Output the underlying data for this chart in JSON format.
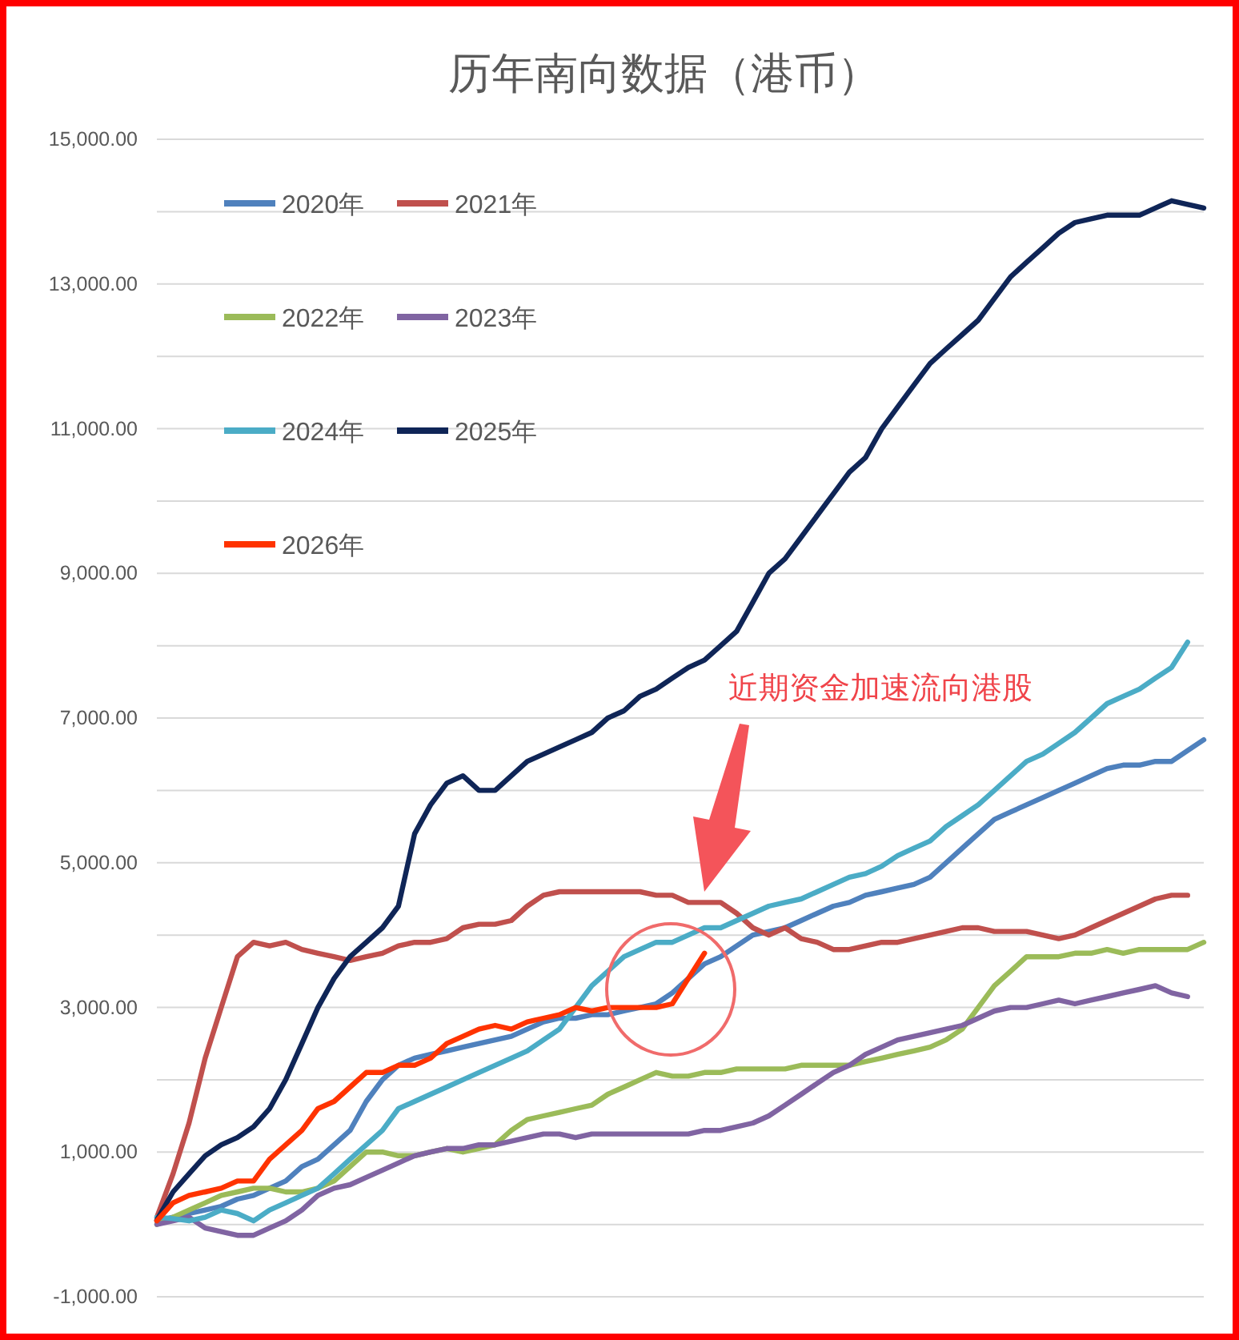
{
  "chart_data": {
    "type": "line",
    "title": "历年南向数据（港币）",
    "categories": [
      null,
      null,
      null,
      null,
      null,
      null,
      null,
      null,
      null,
      null,
      null,
      null,
      null,
      null,
      null,
      null,
      null,
      null,
      null,
      null,
      null,
      null,
      null,
      null,
      null,
      null,
      null,
      null,
      null,
      null,
      null,
      null,
      null,
      null,
      null,
      null,
      null,
      null,
      null,
      null,
      null,
      null,
      null,
      null,
      null,
      null,
      null,
      null,
      null,
      null,
      null,
      null,
      null,
      null,
      null,
      null,
      null,
      null,
      null,
      null,
      null,
      null,
      null,
      null,
      null,
      null
    ],
    "ylim": [
      -1000,
      15000
    ],
    "yticks": [
      {
        "value": -1000,
        "label": "-1,000.00"
      },
      {
        "value": 0,
        "label": null
      },
      {
        "value": 1000,
        "label": "1,000.00"
      },
      {
        "value": 2000,
        "label": null
      },
      {
        "value": 3000,
        "label": "3,000.00"
      },
      {
        "value": 4000,
        "label": null
      },
      {
        "value": 5000,
        "label": "5,000.00"
      },
      {
        "value": 6000,
        "label": null
      },
      {
        "value": 7000,
        "label": "7,000.00"
      },
      {
        "value": 8000,
        "label": null
      },
      {
        "value": 9000,
        "label": "9,000.00"
      },
      {
        "value": 10000,
        "label": null
      },
      {
        "value": 11000,
        "label": "11,000.00"
      },
      {
        "value": 12000,
        "label": null
      },
      {
        "value": 13000,
        "label": "13,000.00"
      },
      {
        "value": 14000,
        "label": null
      },
      {
        "value": 15000,
        "label": "15,000.00"
      }
    ],
    "grid": "y",
    "legend": "top left",
    "tick_labels": "y",
    "marker": "none",
    "line_style": "solid",
    "annotations": [
      "近期资金加速流向港股"
    ],
    "series": [
      {
        "name": "2020年",
        "color": "#4f81bd",
        "values": [
          50,
          100,
          150,
          200,
          250,
          350,
          400,
          500,
          600,
          800,
          900,
          1100,
          1300,
          1700,
          2000,
          2200,
          2300,
          2350,
          2400,
          2450,
          2500,
          2550,
          2600,
          2700,
          2800,
          2850,
          2850,
          2900,
          2900,
          2950,
          3000,
          3050,
          3200,
          3400,
          3600,
          3700,
          3850,
          4000,
          4050,
          4100,
          4200,
          4300,
          4400,
          4450,
          4550,
          4600,
          4650,
          4700,
          4800,
          5000,
          5200,
          5400,
          5600,
          5700,
          5800,
          5900,
          6000,
          6100,
          6200,
          6300,
          6350,
          6350,
          6400,
          6400,
          6550,
          6700
        ]
      },
      {
        "name": "2021年",
        "color": "#c0504d",
        "values": [
          100,
          700,
          1400,
          2300,
          3000,
          3700,
          3900,
          3850,
          3900,
          3800,
          3750,
          3700,
          3650,
          3700,
          3750,
          3850,
          3900,
          3900,
          3950,
          4100,
          4150,
          4150,
          4200,
          4400,
          4550,
          4600,
          4600,
          4600,
          4600,
          4600,
          4600,
          4550,
          4550,
          4450,
          4450,
          4450,
          4300,
          4100,
          4000,
          4100,
          3950,
          3900,
          3800,
          3800,
          3850,
          3900,
          3900,
          3950,
          4000,
          4050,
          4100,
          4100,
          4050,
          4050,
          4050,
          4000,
          3950,
          4000,
          4100,
          4200,
          4300,
          4400,
          4500,
          4550,
          4550,
          null
        ]
      },
      {
        "name": "2022年",
        "color": "#9bbb59",
        "values": [
          0,
          100,
          200,
          300,
          400,
          450,
          500,
          500,
          450,
          450,
          500,
          600,
          800,
          1000,
          1000,
          950,
          950,
          1000,
          1050,
          1000,
          1050,
          1100,
          1300,
          1450,
          1500,
          1550,
          1600,
          1650,
          1800,
          1900,
          2000,
          2100,
          2050,
          2050,
          2100,
          2100,
          2150,
          2150,
          2150,
          2150,
          2200,
          2200,
          2200,
          2200,
          2250,
          2300,
          2350,
          2400,
          2450,
          2550,
          2700,
          3000,
          3300,
          3500,
          3700,
          3700,
          3700,
          3750,
          3750,
          3800,
          3750,
          3800,
          3800,
          3800,
          3800,
          3900
        ]
      },
      {
        "name": "2023年",
        "color": "#8064a2",
        "values": [
          0,
          50,
          100,
          -50,
          -100,
          -150,
          -150,
          -50,
          50,
          200,
          400,
          500,
          550,
          650,
          750,
          850,
          950,
          1000,
          1050,
          1050,
          1100,
          1100,
          1150,
          1200,
          1250,
          1250,
          1200,
          1250,
          1250,
          1250,
          1250,
          1250,
          1250,
          1250,
          1300,
          1300,
          1350,
          1400,
          1500,
          1650,
          1800,
          1950,
          2100,
          2200,
          2350,
          2450,
          2550,
          2600,
          2650,
          2700,
          2750,
          2850,
          2950,
          3000,
          3000,
          3050,
          3100,
          3050,
          3100,
          3150,
          3200,
          3250,
          3300,
          3200,
          3150,
          null
        ]
      },
      {
        "name": "2024年",
        "color": "#4bacc6",
        "values": [
          100,
          80,
          50,
          100,
          200,
          150,
          50,
          200,
          300,
          400,
          500,
          700,
          900,
          1100,
          1300,
          1600,
          1700,
          1800,
          1900,
          2000,
          2100,
          2200,
          2300,
          2400,
          2550,
          2700,
          3000,
          3300,
          3500,
          3700,
          3800,
          3900,
          3900,
          4000,
          4100,
          4100,
          4200,
          4300,
          4400,
          4450,
          4500,
          4600,
          4700,
          4800,
          4850,
          4950,
          5100,
          5200,
          5300,
          5500,
          5650,
          5800,
          6000,
          6200,
          6400,
          6500,
          6650,
          6800,
          7000,
          7200,
          7300,
          7400,
          7550,
          7700,
          8050,
          null
        ]
      },
      {
        "name": "2025年",
        "color": "#0f2557",
        "values": [
          60,
          450,
          700,
          950,
          1100,
          1200,
          1350,
          1600,
          2000,
          2500,
          3000,
          3400,
          3700,
          3900,
          4100,
          4400,
          5400,
          5800,
          6100,
          6200,
          6000,
          6000,
          6200,
          6400,
          6500,
          6600,
          6700,
          6800,
          7000,
          7100,
          7300,
          7400,
          7550,
          7700,
          7800,
          8000,
          8200,
          8600,
          9000,
          9200,
          9500,
          9800,
          10100,
          10400,
          10600,
          11000,
          11300,
          11600,
          11900,
          12100,
          12300,
          12500,
          12800,
          13100,
          13300,
          13500,
          13700,
          13850,
          13900,
          13950,
          13950,
          13950,
          14050,
          14150,
          14100,
          14050
        ]
      },
      {
        "name": "2026年",
        "color": "#ff3300",
        "values": [
          50,
          300,
          400,
          450,
          500,
          600,
          600,
          900,
          1100,
          1300,
          1600,
          1700,
          1900,
          2100,
          2100,
          2200,
          2200,
          2300,
          2500,
          2600,
          2700,
          2750,
          2700,
          2800,
          2850,
          2900,
          3000,
          2950,
          3000,
          3000,
          3000,
          3000,
          3050,
          3400,
          3750,
          null,
          null,
          null,
          null,
          null,
          null,
          null,
          null,
          null,
          null,
          null,
          null,
          null,
          null,
          null,
          null,
          null,
          null,
          null,
          null,
          null,
          null,
          null,
          null,
          null,
          null,
          null,
          null,
          null,
          null,
          null
        ]
      }
    ]
  }
}
